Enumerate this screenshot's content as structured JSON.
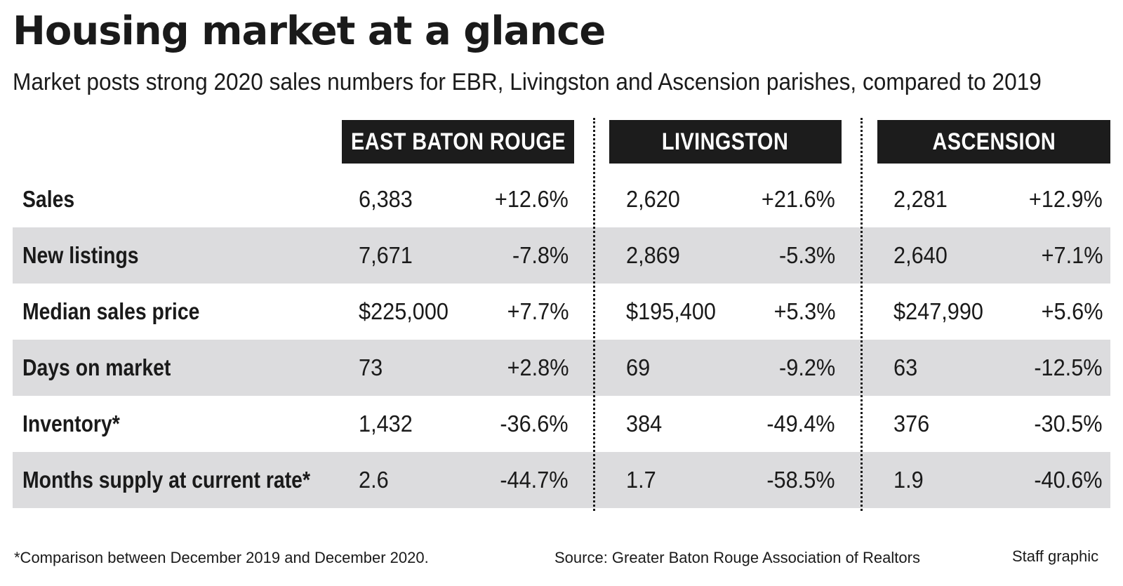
{
  "title": "Housing market at a glance",
  "subtitle": "Market posts strong 2020 sales numbers for EBR, Livingston and Ascension parishes, compared to 2019",
  "columns": [
    "EAST BATON ROUGE",
    "LIVINGSTON",
    "ASCENSION"
  ],
  "rows": [
    {
      "label": "Sales",
      "cells": [
        [
          "6,383",
          "+12.6%"
        ],
        [
          "2,620",
          "+21.6%"
        ],
        [
          "2,281",
          "+12.9%"
        ]
      ]
    },
    {
      "label": "New listings",
      "cells": [
        [
          "7,671",
          "-7.8%"
        ],
        [
          "2,869",
          "-5.3%"
        ],
        [
          "2,640",
          "+7.1%"
        ]
      ]
    },
    {
      "label": "Median sales price",
      "cells": [
        [
          "$225,000",
          "+7.7%"
        ],
        [
          "$195,400",
          "+5.3%"
        ],
        [
          "$247,990",
          "+5.6%"
        ]
      ]
    },
    {
      "label": "Days on market",
      "cells": [
        [
          "73",
          "+2.8%"
        ],
        [
          "69",
          "-9.2%"
        ],
        [
          "63",
          "-12.5%"
        ]
      ]
    },
    {
      "label": "Inventory*",
      "cells": [
        [
          "1,432",
          "-36.6%"
        ],
        [
          "384",
          "-49.4%"
        ],
        [
          "376",
          "-30.5%"
        ]
      ]
    },
    {
      "label": "Months supply at current rate*",
      "cells": [
        [
          "2.6",
          "-44.7%"
        ],
        [
          "1.7",
          "-58.5%"
        ],
        [
          "1.9",
          "-40.6%"
        ]
      ]
    }
  ],
  "footnote": "*Comparison between December 2019 and December 2020.",
  "source": "Source: Greater Baton Rouge Association of Realtors",
  "credit": "Staff graphic",
  "colors": {
    "header_bg": "#1c1c1c",
    "row_shade": "#dcdcde",
    "text": "#1a1a1a"
  }
}
